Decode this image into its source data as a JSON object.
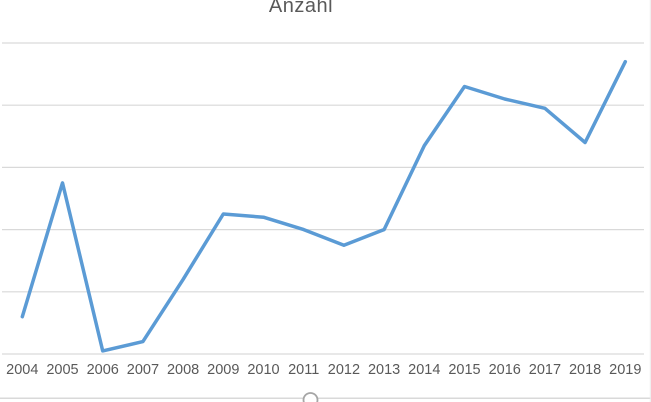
{
  "chart_data": {
    "type": "line",
    "title": "Anzahl",
    "categories": [
      "2004",
      "2005",
      "2006",
      "2007",
      "2008",
      "2009",
      "2010",
      "2011",
      "2012",
      "2013",
      "2014",
      "2015",
      "2016",
      "2017",
      "2018",
      "2019"
    ],
    "series": [
      {
        "name": "Anzahl",
        "values": [
          6,
          27.5,
          0.5,
          2,
          12,
          22.5,
          22,
          20,
          17.5,
          20,
          33.5,
          43,
          41,
          39.5,
          34,
          47
        ]
      }
    ],
    "xlabel": "",
    "ylabel": "",
    "ylim": [
      0,
      50
    ],
    "gridline_interval": 10,
    "grid": true,
    "legend": "none",
    "y_axis_tick_labels_visible": false
  },
  "colors": {
    "series_line": "#5B9BD5",
    "gridline": "#D9D9D9",
    "axis_text": "#595959",
    "title_text": "#595959",
    "chart_border": "#D9D9D9",
    "right_edge": "#ECECEC",
    "handle_stroke": "#A6A6A6",
    "handle_fill": "#FFFFFF"
  }
}
